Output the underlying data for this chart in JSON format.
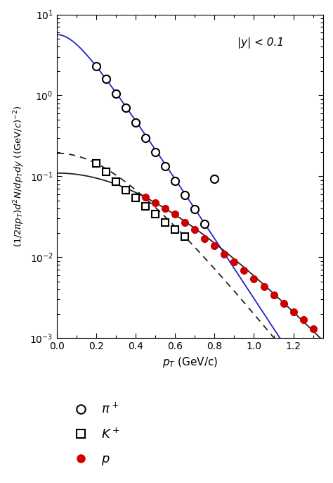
{
  "annotation": "|y| < 0.1",
  "xlabel": "$p_T$ (GeV/c)",
  "ylabel": "$(1/2\\pi p_T)d^2N/dp_T dy$ $((\\mathrm{GeV}/c)^{-2})$",
  "xlim": [
    0.0,
    1.35
  ],
  "ylim": [
    0.001,
    10
  ],
  "title": "",
  "pi_data_x": [
    0.2,
    0.25,
    0.3,
    0.35,
    0.4,
    0.45,
    0.5,
    0.55,
    0.6,
    0.65,
    0.7,
    0.75,
    0.8
  ],
  "pi_data_y": [
    2.3,
    1.6,
    1.05,
    0.7,
    0.46,
    0.3,
    0.2,
    0.133,
    0.088,
    0.059,
    0.039,
    0.026,
    0.093
  ],
  "K_data_x": [
    0.2,
    0.25,
    0.3,
    0.35,
    0.4,
    0.45,
    0.5,
    0.55,
    0.6,
    0.65
  ],
  "K_data_y": [
    0.145,
    0.113,
    0.086,
    0.068,
    0.054,
    0.043,
    0.034,
    0.027,
    0.022,
    0.018
  ],
  "p_data_x": [
    0.45,
    0.5,
    0.55,
    0.6,
    0.65,
    0.7,
    0.75,
    0.8,
    0.85,
    0.9,
    0.95,
    1.0,
    1.05,
    1.1,
    1.15,
    1.2,
    1.25,
    1.3
  ],
  "p_data_y": [
    0.055,
    0.047,
    0.04,
    0.034,
    0.027,
    0.022,
    0.017,
    0.014,
    0.011,
    0.0088,
    0.0069,
    0.0054,
    0.0043,
    0.0034,
    0.0027,
    0.0021,
    0.0017,
    0.0013
  ],
  "line_pi_color": "#2222cc",
  "line_pi_style": "solid",
  "line_K_color": "#222222",
  "line_K_style": "dashed",
  "line_p_color": "#222222",
  "line_p_style": "solid",
  "pi_marker_edge": "#000000",
  "pi_marker_face": "white",
  "K_marker_edge": "#000000",
  "K_marker_face": "white",
  "p_marker_color": "#cc0000",
  "legend_pi": "$\\pi^+$",
  "legend_K": "$K^+$",
  "legend_p": "$p$",
  "curve_pi_A": 16.0,
  "curve_pi_T": 0.1263,
  "curve_pi_m": 0.14,
  "curve_K_A": 6.75,
  "curve_K_T": 0.1389,
  "curve_K_m": 0.494,
  "curve_p_A": 55.0,
  "curve_p_T": 0.1463,
  "curve_p_m": 0.938
}
